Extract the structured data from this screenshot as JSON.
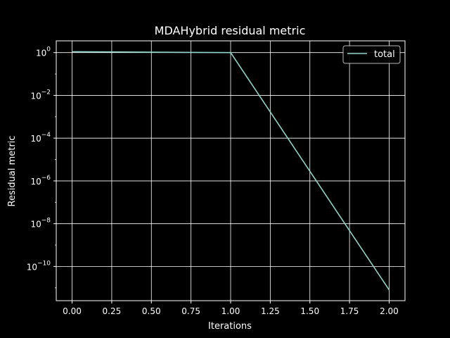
{
  "chart_data": {
    "type": "line",
    "title": "MDAHybrid residual metric",
    "xlabel": "Iterations",
    "ylabel": "Residual metric",
    "yscale": "log",
    "xlim": [
      -0.1,
      2.1
    ],
    "ylim_log10": [
      -11.6,
      0.55
    ],
    "grid": true,
    "legend_position": "top-right",
    "x_ticks": [
      "0.00",
      "0.25",
      "0.50",
      "0.75",
      "1.00",
      "1.25",
      "1.50",
      "1.75",
      "2.00"
    ],
    "x_tick_values": [
      0,
      0.25,
      0.5,
      0.75,
      1.0,
      1.25,
      1.5,
      1.75,
      2.0
    ],
    "y_ticks": [
      {
        "base": "10",
        "exp": "0",
        "log": 0
      },
      {
        "base": "10",
        "exp": "−2",
        "log": -2
      },
      {
        "base": "10",
        "exp": "−4",
        "log": -4
      },
      {
        "base": "10",
        "exp": "−6",
        "log": -6
      },
      {
        "base": "10",
        "exp": "−8",
        "log": -8
      },
      {
        "base": "10",
        "exp": "−10",
        "log": -10
      }
    ],
    "series": [
      {
        "name": "total",
        "color": "#8dd3c7",
        "x": [
          0,
          1,
          2
        ],
        "y": [
          1.1,
          1.0,
          8e-12
        ]
      }
    ]
  }
}
